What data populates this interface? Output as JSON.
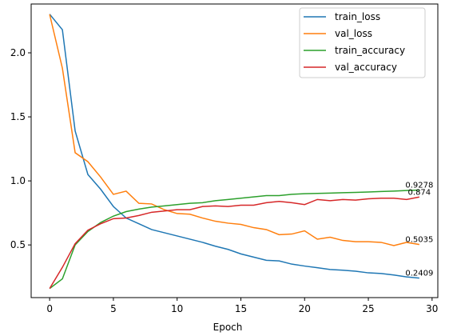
{
  "chart_data": {
    "type": "line",
    "xlabel": "Epoch",
    "ylabel": "",
    "xlim": [
      -1.45,
      30.45
    ],
    "ylim": [
      0.0887,
      2.3812
    ],
    "xticks": [
      0,
      5,
      10,
      15,
      20,
      25,
      30
    ],
    "yticks": [
      0.5,
      1.0,
      1.5,
      2.0
    ],
    "ytick_labels": [
      "0.5",
      "1.0",
      "1.5",
      "2.0"
    ],
    "grid": false,
    "legend_position": "top-right",
    "x": [
      0,
      1,
      2,
      3,
      4,
      5,
      6,
      7,
      8,
      9,
      10,
      11,
      12,
      13,
      14,
      15,
      16,
      17,
      18,
      19,
      20,
      21,
      22,
      23,
      24,
      25,
      26,
      27,
      28,
      29
    ],
    "series": [
      {
        "name": "train_loss",
        "color": "#1f77b4",
        "values": [
          2.302,
          2.18,
          1.39,
          1.05,
          0.935,
          0.8,
          0.71,
          0.665,
          0.62,
          0.595,
          0.57,
          0.545,
          0.52,
          0.49,
          0.465,
          0.43,
          0.405,
          0.38,
          0.375,
          0.35,
          0.335,
          0.322,
          0.308,
          0.303,
          0.295,
          0.282,
          0.277,
          0.265,
          0.25,
          0.2409
        ],
        "end_label": "0.2409"
      },
      {
        "name": "val_loss",
        "color": "#ff7f0e",
        "values": [
          2.3,
          1.88,
          1.22,
          1.15,
          1.03,
          0.895,
          0.92,
          0.825,
          0.82,
          0.775,
          0.745,
          0.74,
          0.71,
          0.685,
          0.67,
          0.66,
          0.635,
          0.62,
          0.58,
          0.585,
          0.61,
          0.545,
          0.56,
          0.535,
          0.525,
          0.525,
          0.52,
          0.495,
          0.52,
          0.5035
        ],
        "end_label": "0.5035"
      },
      {
        "name": "train_accuracy",
        "color": "#2ca02c",
        "values": [
          0.16,
          0.235,
          0.5,
          0.605,
          0.675,
          0.725,
          0.76,
          0.78,
          0.795,
          0.805,
          0.815,
          0.825,
          0.83,
          0.845,
          0.855,
          0.865,
          0.875,
          0.885,
          0.885,
          0.895,
          0.9,
          0.902,
          0.905,
          0.908,
          0.91,
          0.913,
          0.917,
          0.92,
          0.925,
          0.9278
        ],
        "end_label": "0.9278"
      },
      {
        "name": "val_accuracy",
        "color": "#d62728",
        "values": [
          0.16,
          0.325,
          0.51,
          0.615,
          0.665,
          0.705,
          0.71,
          0.73,
          0.755,
          0.765,
          0.775,
          0.775,
          0.8,
          0.805,
          0.8,
          0.81,
          0.81,
          0.83,
          0.84,
          0.83,
          0.815,
          0.855,
          0.845,
          0.855,
          0.85,
          0.86,
          0.865,
          0.865,
          0.855,
          0.874
        ],
        "end_label": "0.874"
      }
    ]
  }
}
